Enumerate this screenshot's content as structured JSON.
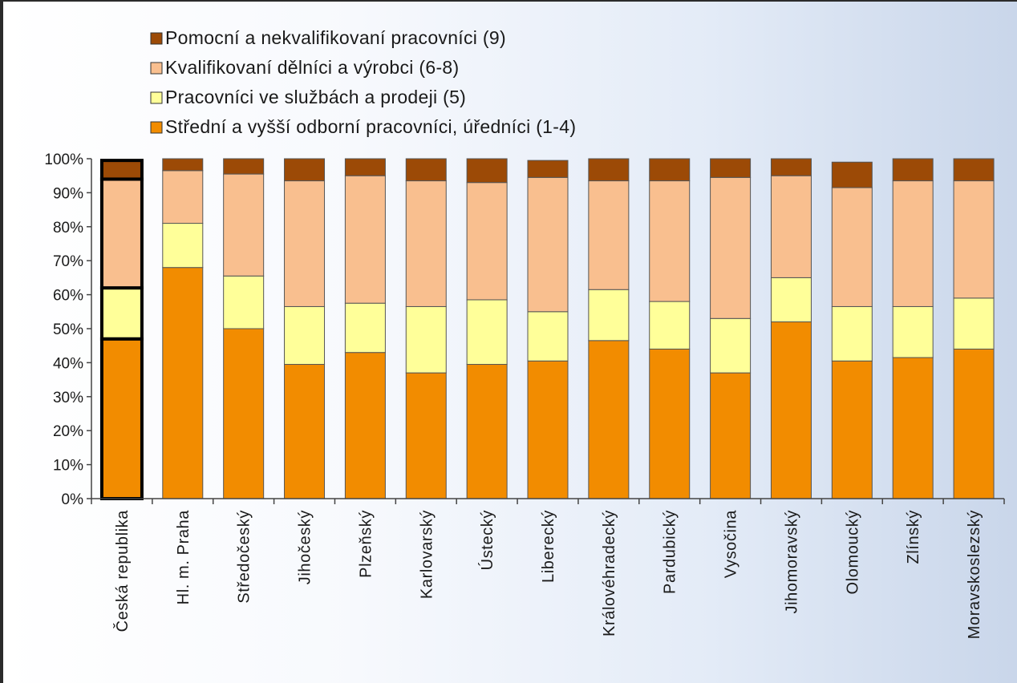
{
  "chart_data": {
    "type": "bar",
    "stacked": true,
    "percent": true,
    "title": "",
    "xlabel": "",
    "ylabel": "",
    "ylim": [
      0,
      100
    ],
    "yticks": [
      "0%",
      "10%",
      "20%",
      "30%",
      "40%",
      "50%",
      "60%",
      "70%",
      "80%",
      "90%",
      "100%"
    ],
    "legend_position": "top-left",
    "grid": false,
    "categories": [
      "Česká republika",
      "Hl. m. Praha",
      "Středočeský",
      "Jihočeský",
      "Plzeňský",
      "Karlovarský",
      "Ústecký",
      "Liberecký",
      "Královéhradecký",
      "Pardubický",
      "Vysočina",
      "Jihomoravský",
      "Olomoucký",
      "Zlínský",
      "Moravskoslezský"
    ],
    "highlighted_category": "Česká republika",
    "series": [
      {
        "name": "Střední a vyšší odborní pracovníci, úředníci (1-4)",
        "color": "#f28c00",
        "values": [
          47,
          68,
          50,
          39.5,
          43,
          37,
          39.5,
          40.5,
          46.5,
          44,
          37,
          52,
          40.5,
          41.5,
          44
        ]
      },
      {
        "name": "Pracovníci ve službách a prodeji (5)",
        "color": "#ffff99",
        "values": [
          15,
          13,
          15.5,
          17,
          14.5,
          19.5,
          19,
          14.5,
          15,
          14,
          16,
          13,
          16,
          15,
          15
        ]
      },
      {
        "name": "Kvalifikovaní dělníci a výrobci (6-8)",
        "color": "#f9bf8f",
        "values": [
          32,
          15.5,
          30,
          37,
          37.5,
          37,
          34.5,
          39.5,
          32,
          35.5,
          41.5,
          30,
          35,
          37,
          34.5
        ]
      },
      {
        "name": "Pomocní a nekvalifikovaní pracovníci (9)",
        "color": "#9c4a06",
        "values": [
          5.5,
          3.5,
          4.5,
          6.5,
          5,
          6.5,
          7,
          5,
          6.5,
          6.5,
          5.5,
          5,
          7.5,
          6.5,
          6.5
        ]
      }
    ],
    "legend_order": [
      3,
      2,
      1,
      0
    ]
  }
}
